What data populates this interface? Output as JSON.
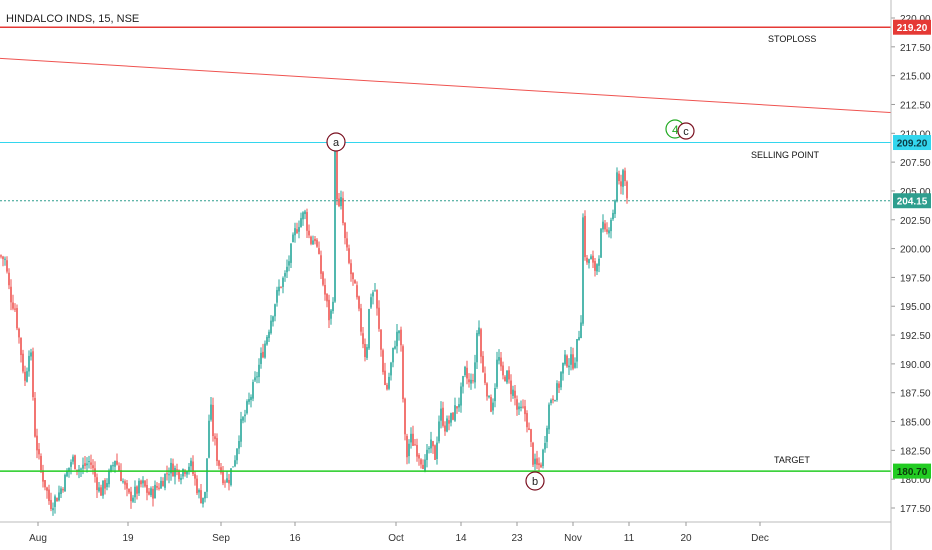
{
  "symbol_title": "HINDALCO INDS, 15, NSE",
  "colors": {
    "up": "#26a69a",
    "down": "#ef5350",
    "stoploss": "#e53935",
    "selling": "#33d6ee",
    "target": "#22cc22",
    "current": "#2e9e8e",
    "trendline": "#ef5350"
  },
  "chart_data": {
    "type": "candlestick",
    "title": "HINDALCO INDS, 15, NSE",
    "x_ticks": [
      "Aug",
      "19",
      "Sep",
      "16",
      "Oct",
      "14",
      "23",
      "Nov",
      "11",
      "20",
      "Dec"
    ],
    "y_ticks": [
      "220.00",
      "217.50",
      "215.00",
      "212.50",
      "210.00",
      "207.50",
      "205.00",
      "202.50",
      "200.00",
      "197.50",
      "195.00",
      "192.50",
      "190.00",
      "187.50",
      "185.00",
      "182.50",
      "180.00",
      "177.50"
    ],
    "ylim": [
      176.5,
      220.5
    ],
    "price_path": [
      [
        0,
        199.4
      ],
      [
        5,
        199.0
      ],
      [
        10,
        196.0
      ],
      [
        15,
        194.8
      ],
      [
        20,
        191.6
      ],
      [
        25,
        188.4
      ],
      [
        30,
        192.0
      ],
      [
        35,
        184.0
      ],
      [
        40,
        181.0
      ],
      [
        45,
        179.6
      ],
      [
        50,
        177.8
      ],
      [
        58,
        178.6
      ],
      [
        65,
        180.0
      ],
      [
        72,
        181.8
      ],
      [
        80,
        180.8
      ],
      [
        90,
        181.6
      ],
      [
        100,
        178.8
      ],
      [
        110,
        180.4
      ],
      [
        115,
        181.8
      ],
      [
        120,
        180.6
      ],
      [
        128,
        178.4
      ],
      [
        135,
        178.8
      ],
      [
        142,
        179.6
      ],
      [
        150,
        178.6
      ],
      [
        160,
        179.6
      ],
      [
        170,
        181.0
      ],
      [
        180,
        180.6
      ],
      [
        190,
        181.4
      ],
      [
        200,
        178.4
      ],
      [
        205,
        178.6
      ],
      [
        210,
        186.8
      ],
      [
        213,
        184.0
      ],
      [
        217,
        182.0
      ],
      [
        222,
        180.4
      ],
      [
        228,
        179.8
      ],
      [
        235,
        182.0
      ],
      [
        240,
        184.4
      ],
      [
        245,
        185.6
      ],
      [
        250,
        187.0
      ],
      [
        255,
        188.4
      ],
      [
        260,
        190.2
      ],
      [
        265,
        191.8
      ],
      [
        270,
        193.6
      ],
      [
        275,
        195.4
      ],
      [
        280,
        196.8
      ],
      [
        285,
        197.6
      ],
      [
        290,
        199.4
      ],
      [
        295,
        201.4
      ],
      [
        300,
        202.6
      ],
      [
        305,
        203.0
      ],
      [
        310,
        200.6
      ],
      [
        315,
        201.0
      ],
      [
        320,
        198.4
      ],
      [
        325,
        196.0
      ],
      [
        330,
        193.6
      ],
      [
        333,
        196.0
      ],
      [
        335,
        208.2
      ],
      [
        338,
        203.0
      ],
      [
        341,
        204.0
      ],
      [
        344,
        201.2
      ],
      [
        348,
        199.0
      ],
      [
        352,
        197.4
      ],
      [
        356,
        196.0
      ],
      [
        360,
        193.6
      ],
      [
        363,
        192.0
      ],
      [
        366,
        190.4
      ],
      [
        370,
        196.0
      ],
      [
        375,
        196.4
      ],
      [
        378,
        193.6
      ],
      [
        382,
        190.4
      ],
      [
        386,
        187.4
      ],
      [
        390,
        189.4
      ],
      [
        395,
        192.0
      ],
      [
        400,
        193.2
      ],
      [
        403,
        187.0
      ],
      [
        406,
        181.6
      ],
      [
        410,
        183.6
      ],
      [
        415,
        183.0
      ],
      [
        420,
        182.0
      ],
      [
        425,
        181.2
      ],
      [
        430,
        183.0
      ],
      [
        435,
        182.0
      ],
      [
        440,
        186.0
      ],
      [
        445,
        184.6
      ],
      [
        450,
        185.0
      ],
      [
        455,
        186.0
      ],
      [
        460,
        187.0
      ],
      [
        465,
        189.2
      ],
      [
        470,
        188.0
      ],
      [
        475,
        189.6
      ],
      [
        478,
        194.4
      ],
      [
        482,
        189.4
      ],
      [
        486,
        188.4
      ],
      [
        490,
        186.0
      ],
      [
        494,
        187.4
      ],
      [
        498,
        191.0
      ],
      [
        502,
        188.6
      ],
      [
        506,
        189.2
      ],
      [
        510,
        188.0
      ],
      [
        514,
        187.4
      ],
      [
        518,
        185.6
      ],
      [
        522,
        186.0
      ],
      [
        526,
        185.6
      ],
      [
        530,
        183.4
      ],
      [
        534,
        181.2
      ],
      [
        538,
        181.0
      ],
      [
        542,
        181.6
      ],
      [
        546,
        184.4
      ],
      [
        550,
        187.0
      ],
      [
        554,
        187.4
      ],
      [
        558,
        187.8
      ],
      [
        562,
        189.6
      ],
      [
        566,
        190.4
      ],
      [
        570,
        190.2
      ],
      [
        574,
        190.2
      ],
      [
        578,
        192.0
      ],
      [
        581,
        194.2
      ],
      [
        583,
        202.6
      ],
      [
        586,
        198.2
      ],
      [
        590,
        199.4
      ],
      [
        594,
        198.0
      ],
      [
        598,
        199.0
      ],
      [
        602,
        202.0
      ],
      [
        606,
        200.8
      ],
      [
        610,
        202.6
      ],
      [
        614,
        203.4
      ],
      [
        617,
        206.4
      ],
      [
        620,
        205.0
      ],
      [
        623,
        206.4
      ],
      [
        626,
        205.6
      ],
      [
        628,
        204.2
      ]
    ],
    "levels": [
      {
        "name": "STOPLOSS",
        "value": 219.2,
        "label": "219.20"
      },
      {
        "name": "SELLING POINT",
        "value": 209.2,
        "label": "209.20"
      },
      {
        "name": "current",
        "value": 204.15,
        "label": "204.15"
      },
      {
        "name": "TARGET",
        "value": 180.7,
        "label": "180.70"
      }
    ],
    "trendline": {
      "start_value": 216.5,
      "end_value": 211.8
    },
    "wave_labels": [
      "a",
      "b",
      "c"
    ],
    "annotations": [
      "STOPLOSS",
      "SELLING POINT",
      "TARGET"
    ]
  }
}
